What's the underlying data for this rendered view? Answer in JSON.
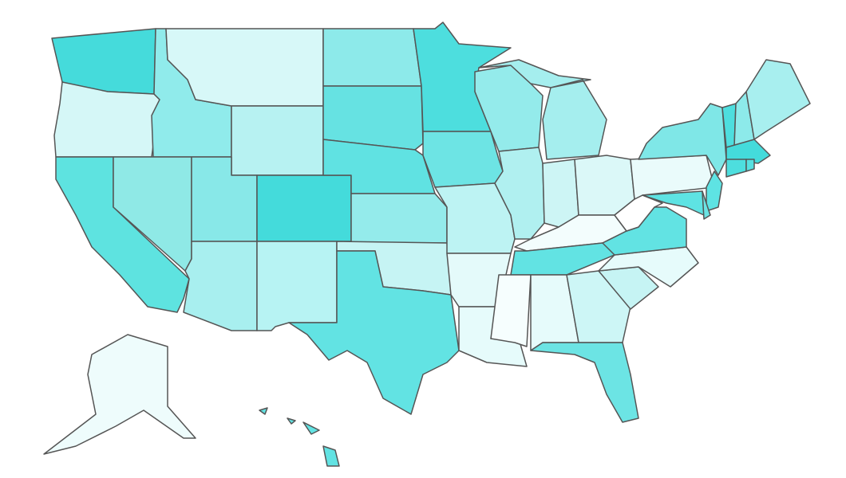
{
  "map": {
    "stroke": "#555555",
    "fills": [
      "#45dbdb",
      "#d5f7f7",
      "#5ee3e0",
      "#90ebeb",
      "#d7f8f8",
      "#b7f2f2",
      "#8fe9e6",
      "#88e8e8",
      "#a8efef",
      "#44dbdb",
      "#b7f3f3",
      "#8deaea",
      "#66e2e2",
      "#60e2e2",
      "#94ebeb",
      "#c6f4f4",
      "#62e3e3",
      "#4ddede",
      "#6de4e4",
      "#bdf3f3",
      "#e4fafa",
      "#e6fbfb",
      "#94ebeb",
      "#b0f0f0",
      "#a5eeee",
      "#cdf5f5",
      "#dbf8f8",
      "#f3fdfd",
      "#62e3e3",
      "#f6fefe",
      "#e6fbfb",
      "#cdf6f6",
      "#6ce4e4",
      "#c6f4f4",
      "#e6fbfb",
      "#62e3e3",
      "#ffffff",
      "#eafbfb",
      "#7fe7e7",
      "#5ee3e3",
      "#5ee3e3",
      "#6ce4e4",
      "#4ddede",
      "#8deaea",
      "#a8efef",
      "#44dbdb",
      "#4ddede",
      "#56e0e0",
      "#eefcfc",
      "#62e3e3"
    ]
  }
}
